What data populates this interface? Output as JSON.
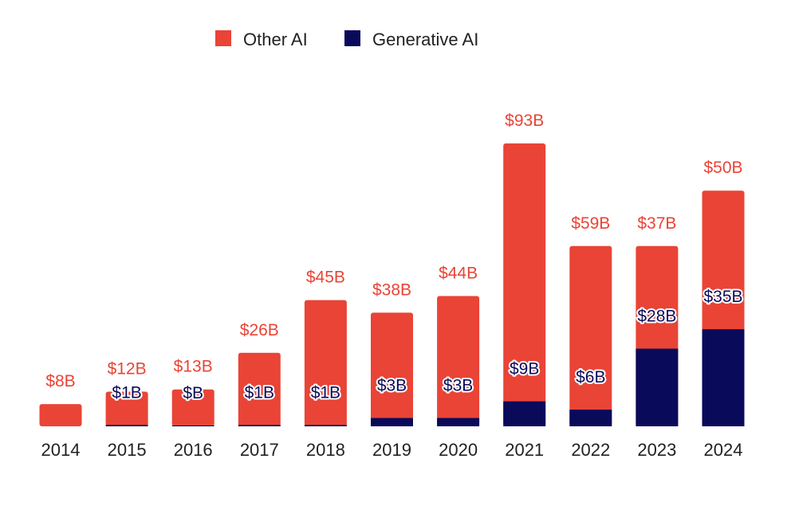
{
  "chart_data": {
    "type": "bar",
    "stacked": true,
    "title": "",
    "xlabel": "",
    "ylabel": "",
    "ylim": [
      0,
      102
    ],
    "grid": false,
    "legend_position": "top-center",
    "categories": [
      "2014",
      "2015",
      "2016",
      "2017",
      "2018",
      "2019",
      "2020",
      "2021",
      "2022",
      "2023",
      "2024"
    ],
    "series": [
      {
        "name": "Generative AI",
        "color": "#0A0A5A",
        "values": [
          0,
          0.5,
          0.3,
          0.5,
          0.5,
          3,
          3,
          9,
          6,
          28,
          35
        ],
        "labels": [
          "",
          "$1B",
          "$B",
          "$1B",
          "$1B",
          "$3B",
          "$3B",
          "$9B",
          "$6B",
          "$28B",
          "$35B"
        ]
      },
      {
        "name": "Other AI",
        "color": "#E94436",
        "values": [
          8,
          12,
          13,
          26,
          45,
          38,
          44,
          93,
          59,
          37,
          50
        ],
        "labels": [
          "$8B",
          "$12B",
          "$13B",
          "$26B",
          "$45B",
          "$38B",
          "$44B",
          "$93B",
          "$59B",
          "$37B",
          "$50B"
        ]
      }
    ],
    "legend": [
      "Other AI",
      "Generative AI"
    ]
  }
}
